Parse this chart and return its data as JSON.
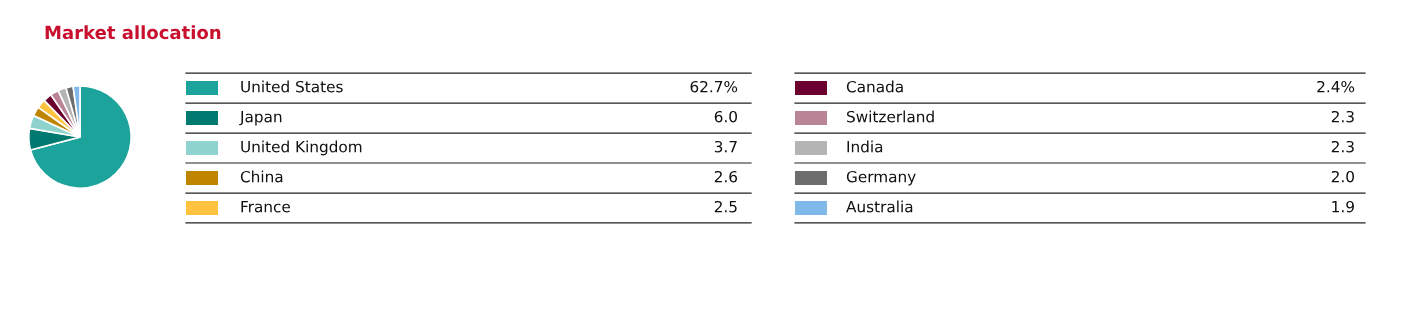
{
  "chart_data": {
    "type": "pie",
    "title": "Market allocation",
    "categories": [
      "United States",
      "Japan",
      "United Kingdom",
      "China",
      "France",
      "Canada",
      "Switzerland",
      "India",
      "Germany",
      "Australia"
    ],
    "values": [
      62.7,
      6.0,
      3.7,
      2.6,
      2.5,
      2.4,
      2.3,
      2.3,
      2.0,
      1.9
    ],
    "value_labels": [
      "62.7%",
      "6.0",
      "3.7",
      "2.6",
      "2.5",
      "2.4%",
      "2.3",
      "2.3",
      "2.0",
      "1.9"
    ],
    "colors": [
      "#1ba39c",
      "#007a70",
      "#8fd3cf",
      "#c08500",
      "#ffc33f",
      "#6b0030",
      "#b98495",
      "#b4b4b4",
      "#6d6d6d",
      "#80b8ea"
    ],
    "legend": "right"
  }
}
